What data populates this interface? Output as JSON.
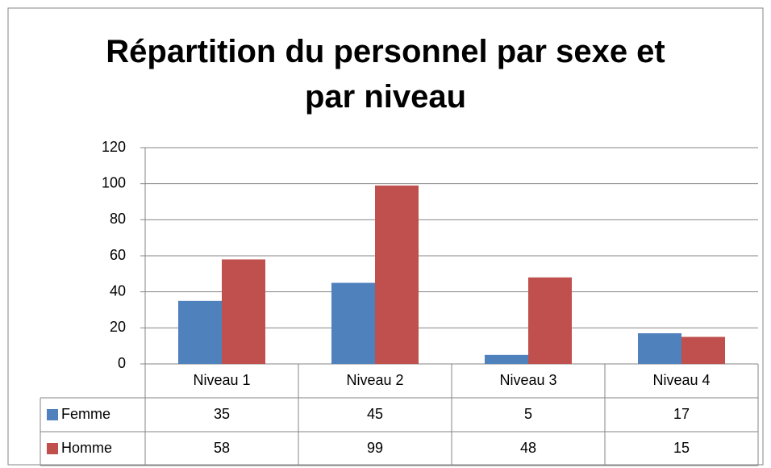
{
  "chart_data": {
    "type": "bar",
    "title": "Répartition du personnel par sexe et par niveau",
    "categories": [
      "Niveau 1",
      "Niveau 2",
      "Niveau 3",
      "Niveau 4"
    ],
    "series": [
      {
        "name": "Femme",
        "color": "#4f81bd",
        "values": [
          35,
          45,
          5,
          17
        ]
      },
      {
        "name": "Homme",
        "color": "#c0504d",
        "values": [
          58,
          99,
          48,
          15
        ]
      }
    ],
    "ylim": [
      0,
      120
    ],
    "yticks": [
      0,
      20,
      40,
      60,
      80,
      100,
      120
    ],
    "grid": true,
    "data_table": true
  }
}
